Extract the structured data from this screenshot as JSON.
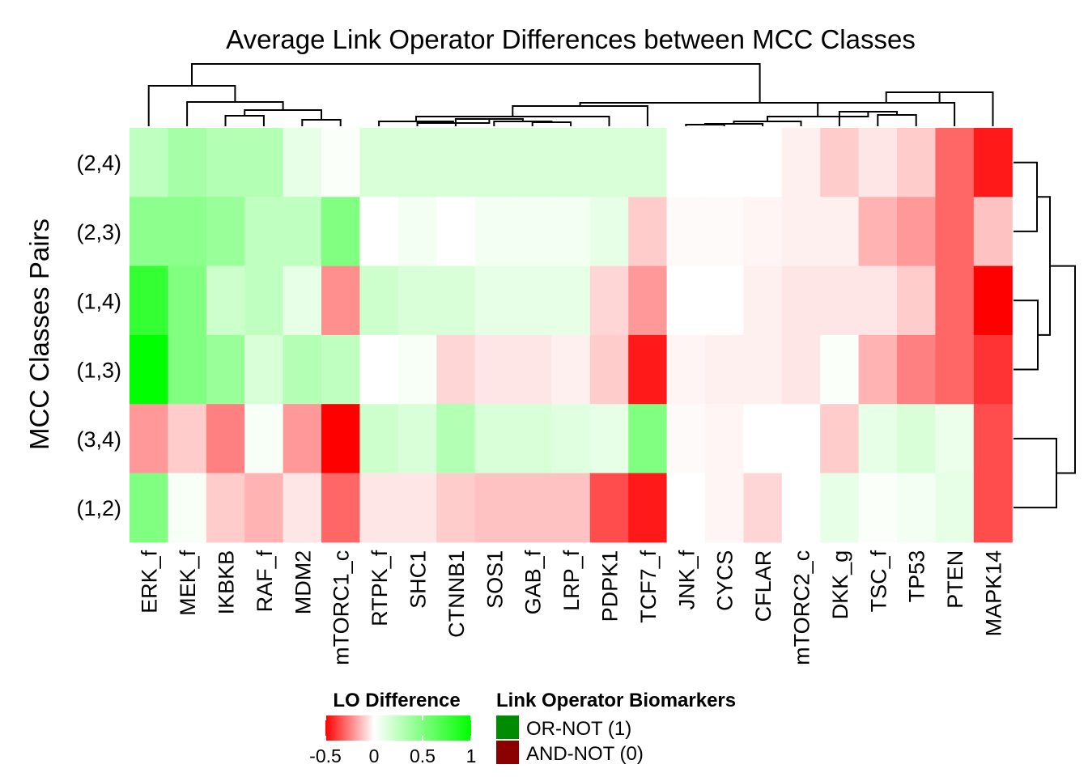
{
  "chart_data": {
    "type": "heatmap",
    "title": "Average Link Operator Differences between MCC Classes",
    "ylabel": "MCC Classes Pairs",
    "columns": [
      "ERK_f",
      "MEK_f",
      "IKBKB",
      "RAF_f",
      "MDM2",
      "mTORC1_c",
      "RTPK_f",
      "SHC1",
      "CTNNB1",
      "SOS1",
      "GAB_f",
      "LRP_f",
      "PDPK1",
      "TCF7_f",
      "JNK_f",
      "CYCS",
      "CFLAR",
      "mTORC2_c",
      "DKK_g",
      "TSC_f",
      "TP53",
      "PTEN",
      "MAPK14"
    ],
    "rows": [
      "(2,4)",
      "(2,3)",
      "(1,4)",
      "(1,3)",
      "(3,4)",
      "(1,2)"
    ],
    "values": [
      [
        0.25,
        0.35,
        0.3,
        0.3,
        0.1,
        0.02,
        0.15,
        0.15,
        0.15,
        0.15,
        0.15,
        0.15,
        0.15,
        0.15,
        0.0,
        0.0,
        0.0,
        -0.03,
        -0.1,
        -0.05,
        -0.1,
        -0.3,
        -0.45
      ],
      [
        0.45,
        0.45,
        0.4,
        0.25,
        0.25,
        0.5,
        0.0,
        0.05,
        0.0,
        0.05,
        0.05,
        0.05,
        0.1,
        -0.1,
        -0.01,
        -0.01,
        -0.02,
        -0.03,
        -0.03,
        -0.15,
        -0.2,
        -0.3,
        -0.12
      ],
      [
        0.8,
        0.5,
        0.2,
        0.25,
        0.1,
        -0.22,
        0.2,
        0.15,
        0.15,
        0.1,
        0.1,
        0.1,
        -0.08,
        -0.2,
        0.0,
        0.0,
        -0.03,
        -0.05,
        -0.05,
        -0.05,
        -0.1,
        -0.3,
        -1.0
      ],
      [
        1.0,
        0.5,
        0.4,
        0.15,
        0.3,
        0.25,
        0.0,
        0.03,
        -0.08,
        -0.05,
        -0.05,
        -0.03,
        -0.1,
        -0.45,
        -0.02,
        -0.03,
        -0.03,
        -0.05,
        0.02,
        -0.15,
        -0.25,
        -0.3,
        -0.4
      ],
      [
        -0.2,
        -0.1,
        -0.25,
        0.03,
        -0.2,
        -0.55,
        0.2,
        0.15,
        0.3,
        0.15,
        0.15,
        0.12,
        0.1,
        0.5,
        -0.01,
        -0.02,
        0.0,
        0.0,
        -0.1,
        0.1,
        0.15,
        0.08,
        -0.35
      ],
      [
        0.5,
        0.03,
        -0.1,
        -0.15,
        -0.05,
        -0.3,
        -0.05,
        -0.05,
        -0.1,
        -0.12,
        -0.12,
        -0.12,
        -0.35,
        -0.45,
        0.0,
        -0.02,
        -0.08,
        0.0,
        0.1,
        0.02,
        0.05,
        0.1,
        -0.35
      ]
    ],
    "legend": {
      "color_title": "LO Difference",
      "color_ticks": [
        "-0.5",
        "0",
        "0.5",
        "1"
      ],
      "color_range": [
        -0.5,
        1
      ],
      "biomarker_title": "Link Operator Biomarkers",
      "biomarker_items": [
        {
          "label": "OR-NOT (1)",
          "color": "#008b00",
          "columns": [
            "ERK_f"
          ]
        },
        {
          "label": "AND-NOT (0)",
          "color": "#8b0000",
          "columns": [
            "MAPK14"
          ]
        }
      ]
    },
    "colors": {
      "low": "#ff0000",
      "mid": "#ffffff",
      "high": "#00ff00"
    }
  }
}
